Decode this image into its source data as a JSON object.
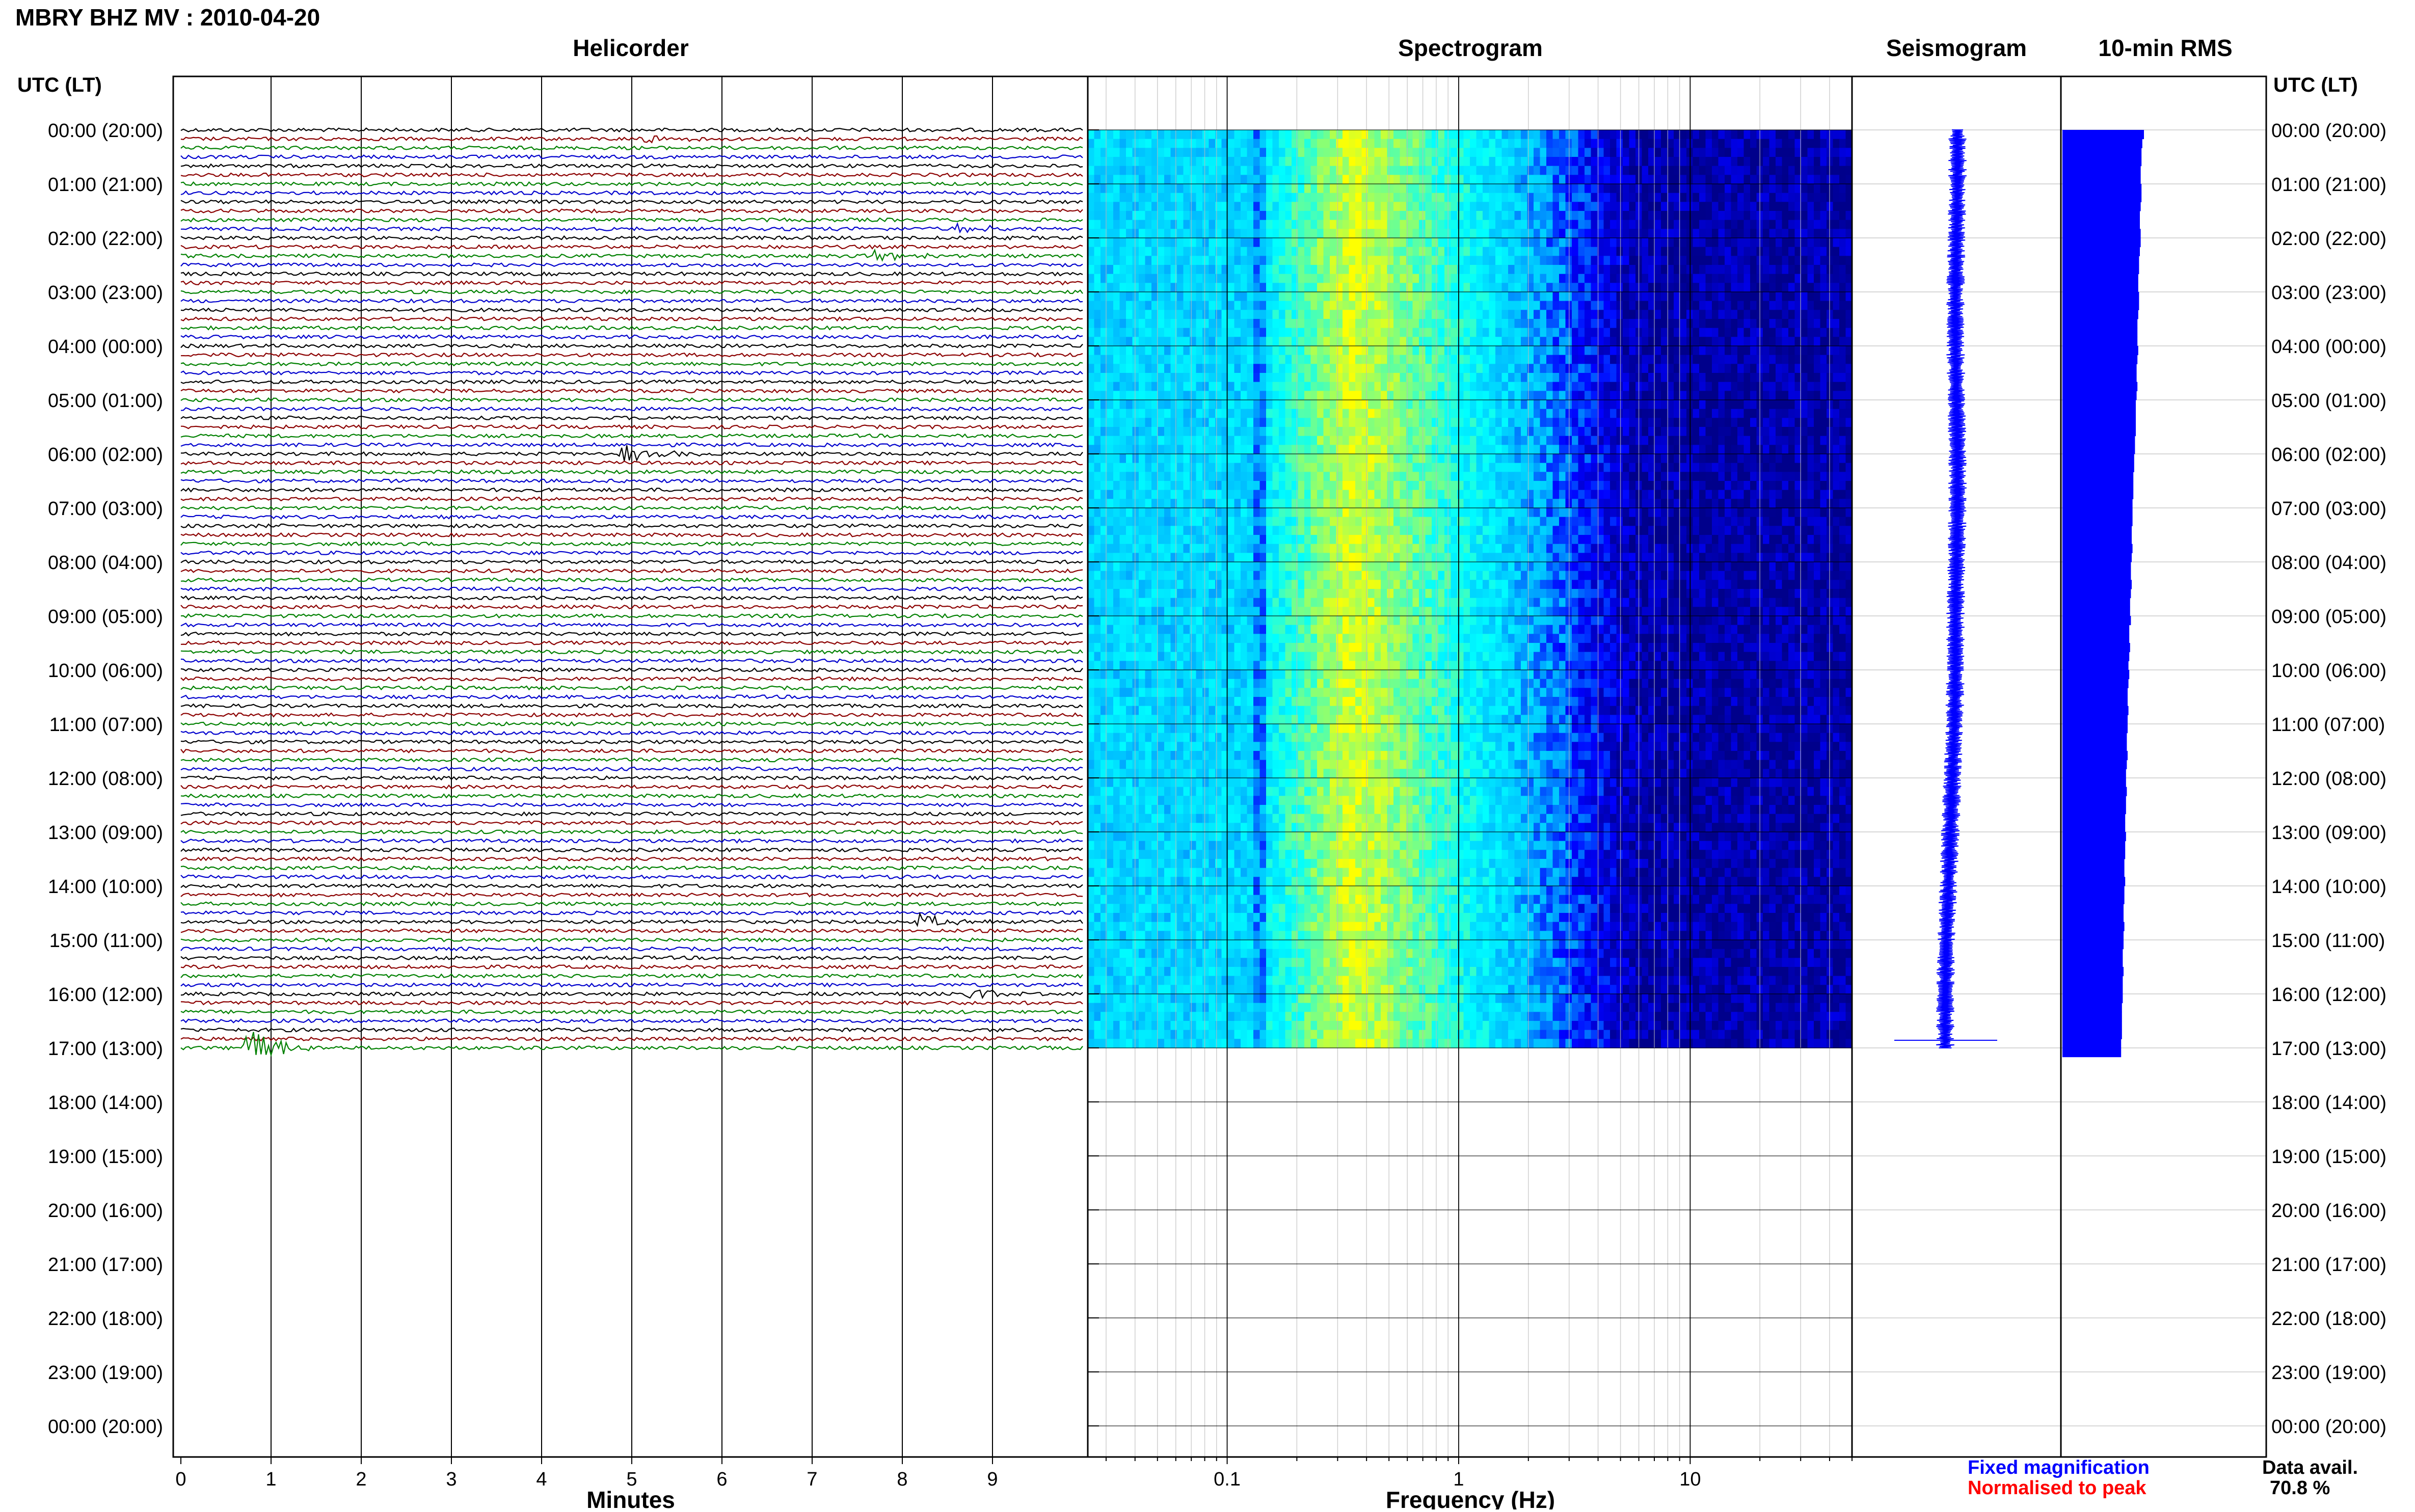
{
  "title": "MBRY BHZ MV : 2010-04-20",
  "panel_titles": {
    "helicorder": "Helicorder",
    "spectrogram": "Spectrogram",
    "seismogram": "Seismogram",
    "rms": "10-min RMS"
  },
  "time_axis_title": "UTC (LT)",
  "time_labels": [
    "00:00 (20:00)",
    "01:00 (21:00)",
    "02:00 (22:00)",
    "03:00 (23:00)",
    "04:00 (00:00)",
    "05:00 (01:00)",
    "06:00 (02:00)",
    "07:00 (03:00)",
    "08:00 (04:00)",
    "09:00 (05:00)",
    "10:00 (06:00)",
    "11:00 (07:00)",
    "12:00 (08:00)",
    "13:00 (09:00)",
    "14:00 (10:00)",
    "15:00 (11:00)",
    "16:00 (12:00)",
    "17:00 (13:00)",
    "18:00 (14:00)",
    "19:00 (15:00)",
    "20:00 (16:00)",
    "21:00 (17:00)",
    "22:00 (18:00)",
    "23:00 (19:00)",
    "00:00 (20:00)"
  ],
  "x_axes": {
    "minutes": {
      "label": "Minutes",
      "ticks": [
        "0",
        "1",
        "2",
        "3",
        "4",
        "5",
        "6",
        "7",
        "8",
        "9"
      ]
    },
    "frequency": {
      "label": "Frequency (Hz)",
      "ticks": [
        "0.1",
        "1",
        "10"
      ]
    }
  },
  "legend": {
    "fixed": "Fixed magnification",
    "normalised": "Normalised to peak",
    "fixed_color": "#0000ff",
    "normalised_color": "#ff0000"
  },
  "data_avail": {
    "label": "Data avail.",
    "value": "70.8 %"
  },
  "colors": {
    "trace_cycle": [
      "#000000",
      "#8b0000",
      "#008000",
      "#0000cd"
    ],
    "seismogram": "#0000ff",
    "rms": "#0000ff"
  },
  "chart_data": [
    {
      "type": "line",
      "title": "Helicorder",
      "xlabel": "Minutes",
      "xlim": [
        0,
        10
      ],
      "rows_per_hour": 6,
      "hours_with_data": 17,
      "events": [
        {
          "row": 102,
          "minute": 0.7,
          "amp": 1.6
        },
        {
          "row": 36,
          "minute": 4.9,
          "amp": 0.6
        },
        {
          "row": 14,
          "minute": 7.7,
          "amp": 0.5
        },
        {
          "row": 88,
          "minute": 8.2,
          "amp": 0.45
        },
        {
          "row": 96,
          "minute": 8.75,
          "amp": 0.4
        },
        {
          "row": 11,
          "minute": 8.6,
          "amp": 0.35
        },
        {
          "row": 1,
          "minute": 5.1,
          "amp": 0.3
        }
      ]
    },
    {
      "type": "heatmap",
      "title": "Spectrogram",
      "xlabel": "Frequency (Hz)",
      "xscale": "log",
      "xlim": [
        0.025,
        50
      ],
      "colormap": [
        "#00008b",
        "#0000ff",
        "#00bfff",
        "#00ffff",
        "#7fff7f",
        "#ffff00"
      ],
      "peak_frequency_hz": 0.35
    },
    {
      "type": "line",
      "title": "Seismogram",
      "note_position": "center",
      "trend": [
        0.0,
        0.0,
        -0.05,
        -0.1,
        -0.1,
        -0.05,
        0.0,
        0.0,
        -0.05,
        -0.1,
        -0.1,
        -0.15,
        -0.25,
        -0.35,
        -0.45,
        -0.55,
        -0.6,
        -0.6
      ]
    },
    {
      "type": "bar",
      "title": "10-min RMS",
      "values_relative": [
        1.0,
        0.98,
        0.97,
        0.97,
        0.96,
        0.96,
        0.97,
        0.97,
        0.96,
        0.95,
        0.95,
        0.96,
        0.96,
        0.95,
        0.94,
        0.94,
        0.93,
        0.93,
        0.94,
        0.94,
        0.93,
        0.92,
        0.92,
        0.92,
        0.93,
        0.92,
        0.91,
        0.91,
        0.92,
        0.91,
        0.9,
        0.9,
        0.9,
        0.9,
        0.89,
        0.89,
        0.88,
        0.88,
        0.87,
        0.87,
        0.87,
        0.86,
        0.86,
        0.86,
        0.85,
        0.85,
        0.86,
        0.85,
        0.84,
        0.84,
        0.85,
        0.84,
        0.83,
        0.83,
        0.84,
        0.82,
        0.82,
        0.83,
        0.82,
        0.81,
        0.82,
        0.81,
        0.8,
        0.8,
        0.81,
        0.8,
        0.8,
        0.79,
        0.79,
        0.8,
        0.79,
        0.78,
        0.78,
        0.79,
        0.78,
        0.78,
        0.77,
        0.77,
        0.78,
        0.77,
        0.77,
        0.76,
        0.76,
        0.77,
        0.76,
        0.76,
        0.75,
        0.75,
        0.76,
        0.75,
        0.75,
        0.74,
        0.74,
        0.75,
        0.74,
        0.74,
        0.74,
        0.73,
        0.73,
        0.73,
        0.73,
        0.72,
        0.72
      ]
    }
  ]
}
